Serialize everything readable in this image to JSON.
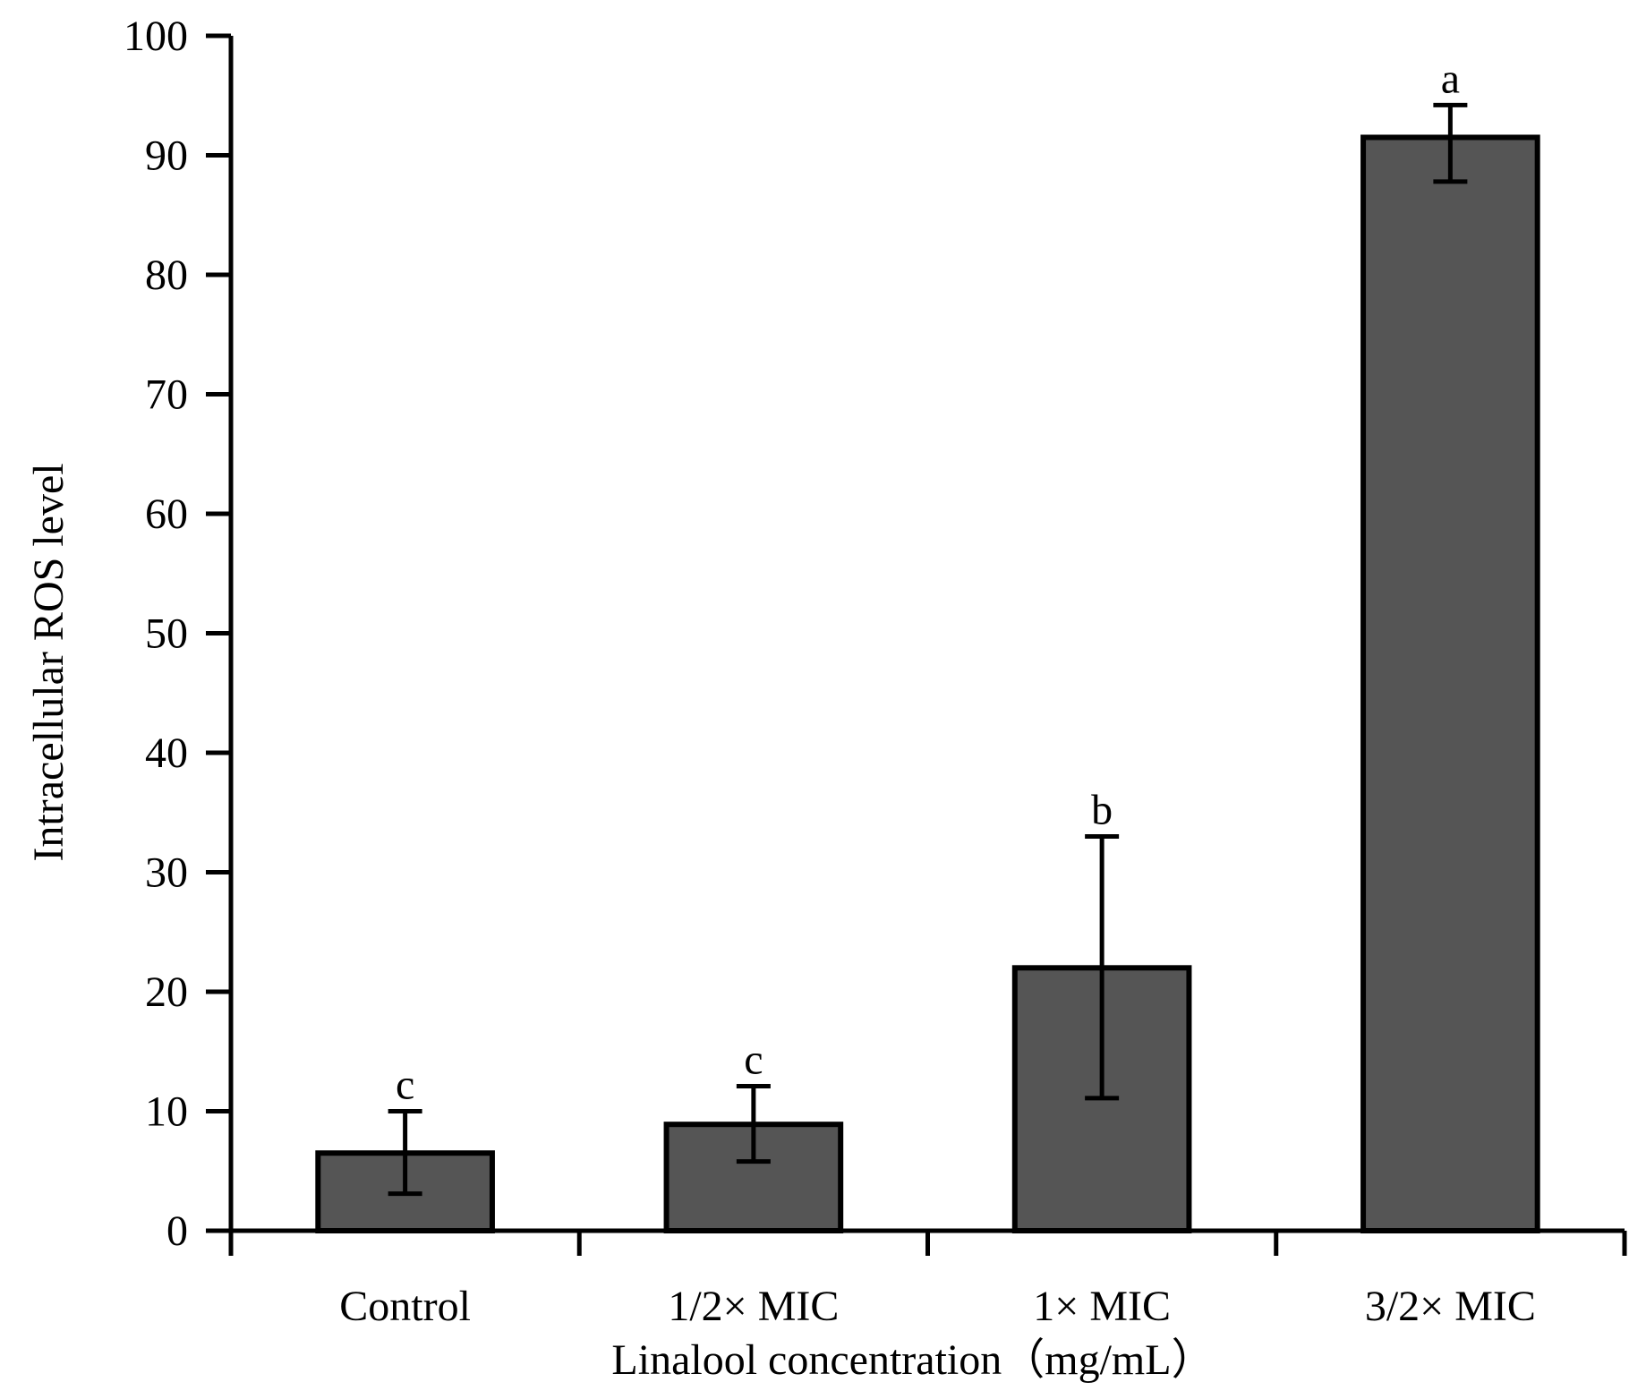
{
  "chart_data": {
    "type": "bar",
    "title": "",
    "xlabel": "Linalool concentration（mg/mL）",
    "ylabel": "Intracellular ROS level",
    "categories": [
      "Control",
      "1/2× MIC",
      "1× MIC",
      "3/2× MIC"
    ],
    "values": [
      6.5,
      8.9,
      22.0,
      91.5
    ],
    "error_low": [
      3.1,
      5.8,
      11.1,
      87.8
    ],
    "error_high": [
      10.0,
      12.1,
      33.0,
      94.2
    ],
    "significance_labels": [
      "c",
      "c",
      "b",
      "a"
    ],
    "ylim": [
      0,
      100
    ],
    "yticks": [
      0,
      10,
      20,
      30,
      40,
      50,
      60,
      70,
      80,
      90,
      100
    ],
    "ytick_labels": [
      "0",
      "10",
      "20",
      "30",
      "40",
      "50",
      "60",
      "70",
      "80",
      "90",
      "100"
    ],
    "grid": false,
    "bar_color": "#555555"
  }
}
